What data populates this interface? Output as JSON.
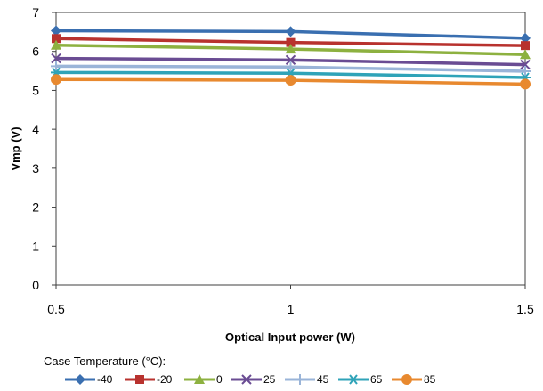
{
  "chart_data": {
    "type": "line",
    "xlabel": "Optical Input power (W)",
    "ylabel": "Vmp (V)",
    "x": [
      0.5,
      1,
      1.5
    ],
    "x_tick_labels": [
      "0.5",
      "1",
      "1.5"
    ],
    "ylim": [
      0,
      7
    ],
    "y_ticks": [
      0,
      1,
      2,
      3,
      4,
      5,
      6,
      7
    ],
    "grid": false,
    "legend_title": "Case Temperature (°C):",
    "legend_position": "bottom",
    "series": [
      {
        "name": "-40",
        "values": [
          6.53,
          6.51,
          6.34
        ],
        "color": "#3a6fb0",
        "marker": "diamond"
      },
      {
        "name": "-20",
        "values": [
          6.33,
          6.23,
          6.15
        ],
        "color": "#b8322e",
        "marker": "square"
      },
      {
        "name": "0",
        "values": [
          6.16,
          6.06,
          5.92
        ],
        "color": "#8db140",
        "marker": "triangle"
      },
      {
        "name": "25",
        "values": [
          5.82,
          5.78,
          5.66
        ],
        "color": "#6a4c93",
        "marker": "x"
      },
      {
        "name": "45",
        "values": [
          5.62,
          5.6,
          5.49
        ],
        "color": "#9ab4d8",
        "marker": "plus"
      },
      {
        "name": "65",
        "values": [
          5.46,
          5.44,
          5.33
        ],
        "color": "#2fa3b8",
        "marker": "asterisk"
      },
      {
        "name": "85",
        "values": [
          5.28,
          5.26,
          5.16
        ],
        "color": "#e8892f",
        "marker": "circle"
      }
    ]
  }
}
